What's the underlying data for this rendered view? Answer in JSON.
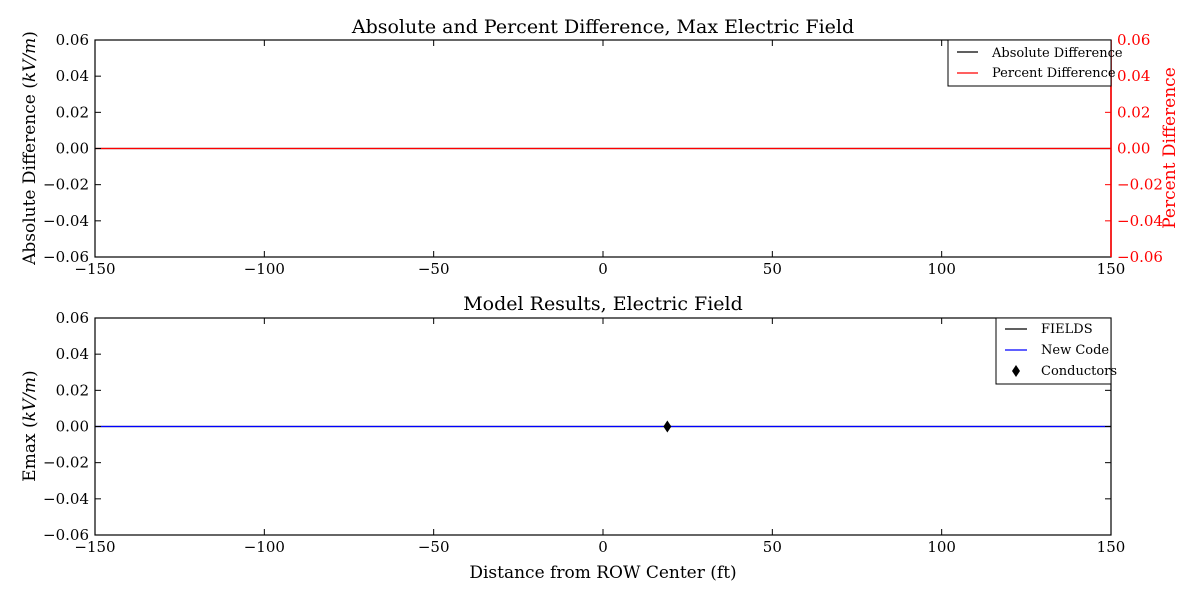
{
  "colors": {
    "black": "#000000",
    "red": "#ff0000",
    "blue": "#0000ff"
  },
  "chart_data": [
    {
      "type": "line",
      "title": "Absolute and Percent Difference, Max Electric Field",
      "ylabel": "Absolute Difference (kV/m)",
      "ylabel_parts": [
        "Absolute Difference (",
        "kV/m",
        ")"
      ],
      "y2label": "Percent Difference",
      "xlim": [
        -150,
        150
      ],
      "ylim": [
        -0.06,
        0.06
      ],
      "y2lim": [
        -0.06,
        0.06
      ],
      "xticks": [
        -150,
        -100,
        -50,
        0,
        50,
        100,
        150
      ],
      "xtick_labels": [
        "−150",
        "−100",
        "−50",
        "0",
        "50",
        "100",
        "150"
      ],
      "yticks": [
        0.06,
        0.04,
        0.02,
        0.0,
        -0.02,
        -0.04,
        -0.06
      ],
      "ytick_labels": [
        "0.06",
        "0.04",
        "0.02",
        "0.00",
        "−0.02",
        "−0.04",
        "−0.06"
      ],
      "y2ticks": [
        0.06,
        0.04,
        0.02,
        0.0,
        -0.02,
        -0.04,
        -0.06
      ],
      "y2tick_labels": [
        "0.06",
        "0.04",
        "0.02",
        "0.00",
        "−0.02",
        "−0.04",
        "−0.06"
      ],
      "legend": "top-right",
      "series": [
        {
          "name": "Absolute Difference",
          "color": "#000000",
          "x": [
            -150,
            150
          ],
          "y": [
            0,
            0
          ],
          "axis": "left"
        },
        {
          "name": "Percent Difference",
          "color": "#ff0000",
          "x": [
            -150,
            150
          ],
          "y": [
            0,
            0
          ],
          "axis": "right"
        }
      ]
    },
    {
      "type": "line",
      "title": "Model Results, Electric Field",
      "ylabel": "Emax (kV/m)",
      "ylabel_parts": [
        "Emax (",
        "kV/m",
        ")"
      ],
      "xlabel": "Distance from ROW Center (ft)",
      "xlim": [
        -150,
        150
      ],
      "ylim": [
        -0.06,
        0.06
      ],
      "xticks": [
        -150,
        -100,
        -50,
        0,
        50,
        100,
        150
      ],
      "xtick_labels": [
        "−150",
        "−100",
        "−50",
        "0",
        "50",
        "100",
        "150"
      ],
      "yticks": [
        0.06,
        0.04,
        0.02,
        0.0,
        -0.02,
        -0.04,
        -0.06
      ],
      "ytick_labels": [
        "0.06",
        "0.04",
        "0.02",
        "0.00",
        "−0.02",
        "−0.04",
        "−0.06"
      ],
      "legend": "top-right",
      "series": [
        {
          "name": "FIELDS",
          "color": "#000000",
          "x": [
            -150,
            150
          ],
          "y": [
            0,
            0
          ]
        },
        {
          "name": "New Code",
          "color": "#0000ff",
          "x": [
            -150,
            150
          ],
          "y": [
            0,
            0
          ]
        }
      ],
      "markers": {
        "name": "Conductors",
        "marker": "diamond",
        "color": "#000000",
        "points": [
          [
            19,
            0
          ]
        ]
      }
    }
  ]
}
